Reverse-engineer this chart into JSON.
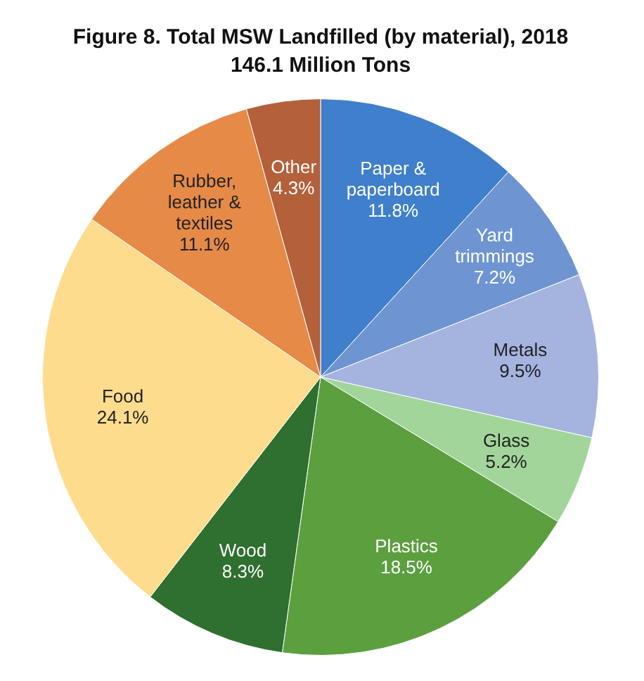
{
  "chart_data": {
    "type": "pie",
    "title": "Figure 8. Total MSW Landfilled (by material), 2018",
    "subtitle": "146.1 Million Tons",
    "categories": [
      "Paper & paperboard",
      "Yard trimmings",
      "Metals",
      "Glass",
      "Plastics",
      "Wood",
      "Food",
      "Rubber, leather & textiles",
      "Other"
    ],
    "values": [
      11.8,
      7.2,
      9.5,
      5.2,
      18.5,
      8.3,
      24.1,
      11.1,
      4.3
    ],
    "colors": [
      "#3f7fcc",
      "#6e95d2",
      "#a4b4df",
      "#a2d59a",
      "#5c9f3f",
      "#2f6f2f",
      "#fddc8e",
      "#e68a48",
      "#b3603b"
    ],
    "value_labels": [
      "11.8%",
      "7.2%",
      "9.5%",
      "5.2%",
      "18.5%",
      "8.3%",
      "24.1%",
      "11.1%",
      "4.3%"
    ],
    "legend": false
  }
}
